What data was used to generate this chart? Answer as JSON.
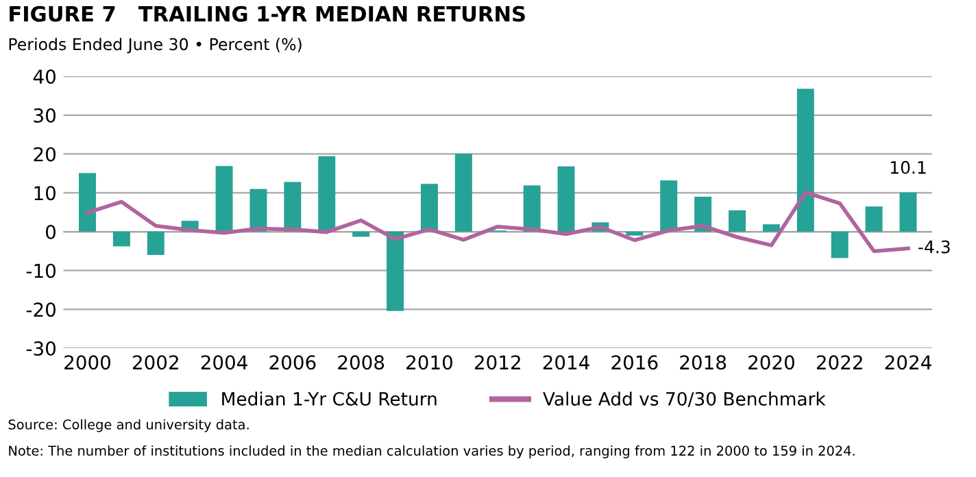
{
  "chart_data": {
    "type": "bar",
    "title": "FIGURE 7   TRAILING 1-YR MEDIAN RETURNS",
    "subtitle": "Periods Ended June 30 • Percent (%)",
    "categories": [
      "2000",
      null,
      "2002",
      null,
      "2004",
      null,
      "2006",
      null,
      "2008",
      null,
      "2010",
      null,
      "2012",
      null,
      "2014",
      null,
      "2016",
      null,
      "2018",
      null,
      "2020",
      null,
      "2022",
      null,
      "2024"
    ],
    "series": [
      {
        "name": "Median 1-Yr C&U Return",
        "color": "#26a296",
        "values": [
          15.1,
          -3.8,
          -6.0,
          2.8,
          16.9,
          11.0,
          12.8,
          19.4,
          -1.3,
          -20.4,
          12.3,
          20.1,
          0.3,
          11.9,
          16.8,
          2.4,
          -1.0,
          13.2,
          9.0,
          5.5,
          1.9,
          36.8,
          -6.8,
          6.5,
          10.1
        ],
        "value_labels": [
          null,
          null,
          null,
          null,
          null,
          null,
          null,
          null,
          null,
          null,
          null,
          null,
          null,
          null,
          null,
          null,
          null,
          null,
          null,
          null,
          null,
          null,
          null,
          null,
          "10.1"
        ]
      },
      {
        "name": "Value Add vs 70/30 Benchmark",
        "type": "line",
        "color": "#b0649e",
        "values": [
          4.9,
          7.7,
          1.5,
          0.4,
          -0.3,
          0.8,
          0.6,
          -0.1,
          2.9,
          -1.9,
          0.6,
          -2.1,
          1.3,
          0.6,
          -0.6,
          1.2,
          -2.2,
          0.3,
          1.5,
          -1.4,
          -3.5,
          10.1,
          7.3,
          -5.0,
          -4.3
        ],
        "value_labels": [
          null,
          null,
          null,
          null,
          null,
          null,
          null,
          null,
          null,
          null,
          null,
          null,
          null,
          null,
          null,
          null,
          null,
          null,
          null,
          null,
          null,
          null,
          null,
          null,
          "-4.3"
        ]
      }
    ],
    "ylim": [
      -30,
      40
    ],
    "yticks": [
      -30,
      -20,
      -10,
      0,
      10,
      20,
      30,
      40
    ],
    "grid": "y",
    "legend": "bottom",
    "marker": "none",
    "line_style": "solid",
    "annotations": [
      "Source: College and university data.",
      "Note: The number of institutions included in the median calculation varies by period, ranging from 122 in 2000 to 159 in 2024."
    ]
  }
}
